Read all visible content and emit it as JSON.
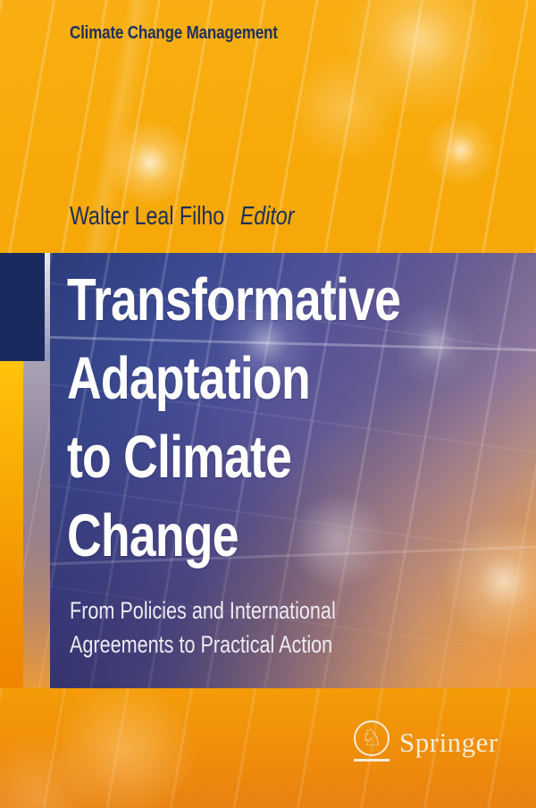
{
  "series": {
    "title": "Climate Change Management"
  },
  "author": {
    "name": "Walter Leal Filho",
    "role": "Editor"
  },
  "main_title": {
    "lines": [
      "Transformative",
      "Adaptation",
      "to Climate",
      "Change"
    ]
  },
  "subtitle": {
    "lines": [
      "From Policies and International",
      "Agreements to Practical Action"
    ]
  },
  "publisher": {
    "name": "Springer",
    "logo_icon": "springer-horse-icon",
    "logo_glyph": "♘"
  },
  "colors": {
    "top_orange": "#f7ab10",
    "bottom_orange": "#ee8a0c",
    "panel_blue_top": "#2c3b7a",
    "panel_orange_bottom": "#ef9e3f",
    "spine_navy": "#1a2a5e",
    "series_text_navy": "#1d3260",
    "title_white": "#ffffff",
    "logo_cream": "#f3edd8"
  }
}
